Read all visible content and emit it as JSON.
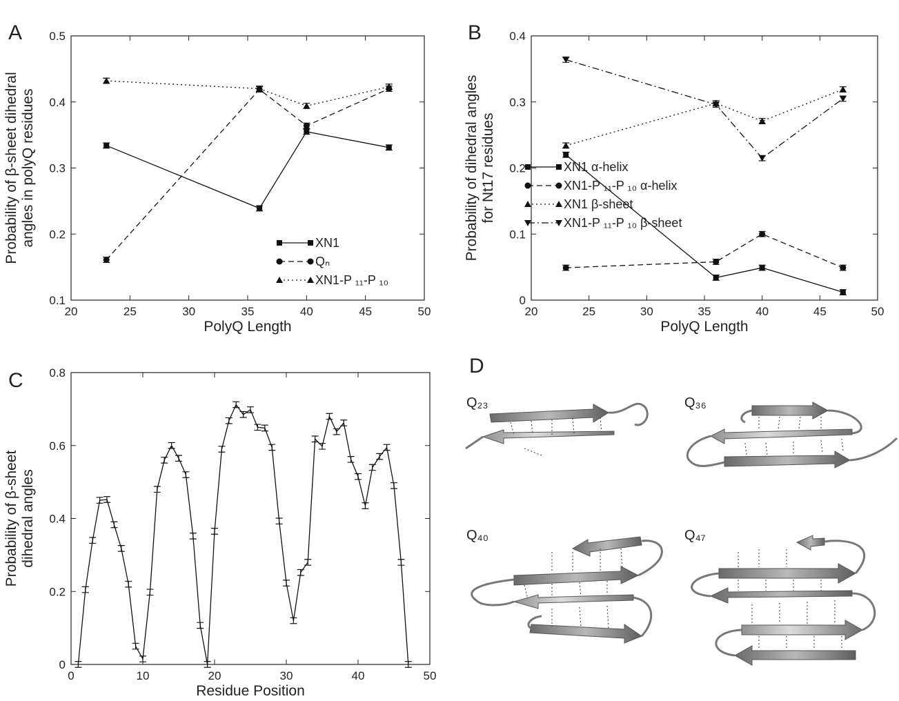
{
  "chart_data": [
    {
      "type": "line",
      "panel": "A",
      "xlabel": "PolyQ Length",
      "ylabel": [
        "Probability of  β-sheet dihedral",
        "angles in polyQ residues"
      ],
      "x": [
        23,
        36,
        40,
        47
      ],
      "xlim": [
        20,
        50
      ],
      "xticks": [
        20,
        25,
        30,
        35,
        40,
        45,
        50
      ],
      "ylim": [
        0.1,
        0.5
      ],
      "yticks": [
        0.1,
        0.2,
        0.3,
        0.4,
        0.5
      ],
      "error": 0.004,
      "legend": "lower right",
      "series": [
        {
          "name": "XN1",
          "color": "#111111",
          "marker": "square",
          "linestyle": "solid",
          "values": [
            0.334,
            0.239,
            0.355,
            0.331
          ]
        },
        {
          "name": "Qₙ",
          "color": "#111111",
          "marker": "circle",
          "linestyle": "dashed",
          "values": [
            0.161,
            0.419,
            0.364,
            0.42
          ]
        },
        {
          "name": "XN1-P ₁₁-P ₁₀",
          "color": "#111111",
          "marker": "triangle",
          "linestyle": "dotted",
          "values": [
            0.432,
            0.42,
            0.394,
            0.423
          ]
        }
      ]
    },
    {
      "type": "line",
      "panel": "B",
      "xlabel": "PolyQ Length",
      "ylabel": [
        "Probability of dihedral angles",
        "for Nt17 residues"
      ],
      "x": [
        23,
        36,
        40,
        47
      ],
      "xlim": [
        20,
        50
      ],
      "xticks": [
        20,
        25,
        30,
        35,
        40,
        45,
        50
      ],
      "ylim": [
        0,
        0.4
      ],
      "yticks": [
        0,
        0.1,
        0.2,
        0.3,
        0.4
      ],
      "error": 0.004,
      "legend": "center",
      "series": [
        {
          "name": "XN1  α-helix",
          "color": "#111111",
          "marker": "square",
          "linestyle": "solid",
          "values": [
            0.22,
            0.034,
            0.049,
            0.012
          ]
        },
        {
          "name": "XN1-P ₁₁-P ₁₀ α-helix",
          "color": "#111111",
          "marker": "circle",
          "linestyle": "dashed",
          "values": [
            0.049,
            0.058,
            0.1,
            0.049
          ]
        },
        {
          "name": "XN1  β-sheet",
          "color": "#111111",
          "marker": "triangle",
          "linestyle": "dotted",
          "values": [
            0.234,
            0.298,
            0.271,
            0.319
          ]
        },
        {
          "name": "XN1-P ₁₁-P ₁₀ β-sheet",
          "color": "#111111",
          "marker": "triangle-down",
          "linestyle": "dashdot",
          "values": [
            0.364,
            0.296,
            0.215,
            0.305
          ]
        }
      ]
    },
    {
      "type": "line",
      "panel": "C",
      "xlabel": "Residue Position",
      "ylabel": [
        "Probability of  β-sheet",
        "dihedral angles"
      ],
      "x": [
        1,
        2,
        3,
        4,
        5,
        6,
        7,
        8,
        9,
        10,
        11,
        12,
        13,
        14,
        15,
        16,
        17,
        18,
        19,
        20,
        21,
        22,
        23,
        24,
        25,
        26,
        27,
        28,
        29,
        30,
        31,
        32,
        33,
        34,
        35,
        36,
        37,
        38,
        39,
        40,
        41,
        42,
        43,
        44,
        45,
        46,
        47
      ],
      "xlim": [
        0,
        50
      ],
      "xticks": [
        0,
        10,
        20,
        30,
        40,
        50
      ],
      "ylim": [
        0,
        0.8
      ],
      "yticks": [
        0,
        0.2,
        0.4,
        0.6,
        0.8
      ],
      "error": 0.008,
      "series": [
        {
          "color": "#111111",
          "marker": "none",
          "linestyle": "solid",
          "values": [
            0,
            0.205,
            0.34,
            0.45,
            0.452,
            0.383,
            0.318,
            0.22,
            0.05,
            0.015,
            0.198,
            0.48,
            0.56,
            0.6,
            0.565,
            0.52,
            0.352,
            0.107,
            0,
            0.365,
            0.59,
            0.668,
            0.712,
            0.685,
            0.698,
            0.65,
            0.648,
            0.595,
            0.393,
            0.223,
            0.12,
            0.252,
            0.28,
            0.618,
            0.598,
            0.68,
            0.638,
            0.662,
            0.562,
            0.515,
            0.435,
            0.54,
            0.57,
            0.595,
            0.49,
            0.28,
            0
          ]
        }
      ]
    }
  ],
  "panel_d": {
    "panel": "D",
    "structures": [
      {
        "label": "Q₂₃"
      },
      {
        "label": "Q₃₆"
      },
      {
        "label": "Q₄₀"
      },
      {
        "label": "Q₄₇"
      }
    ]
  }
}
